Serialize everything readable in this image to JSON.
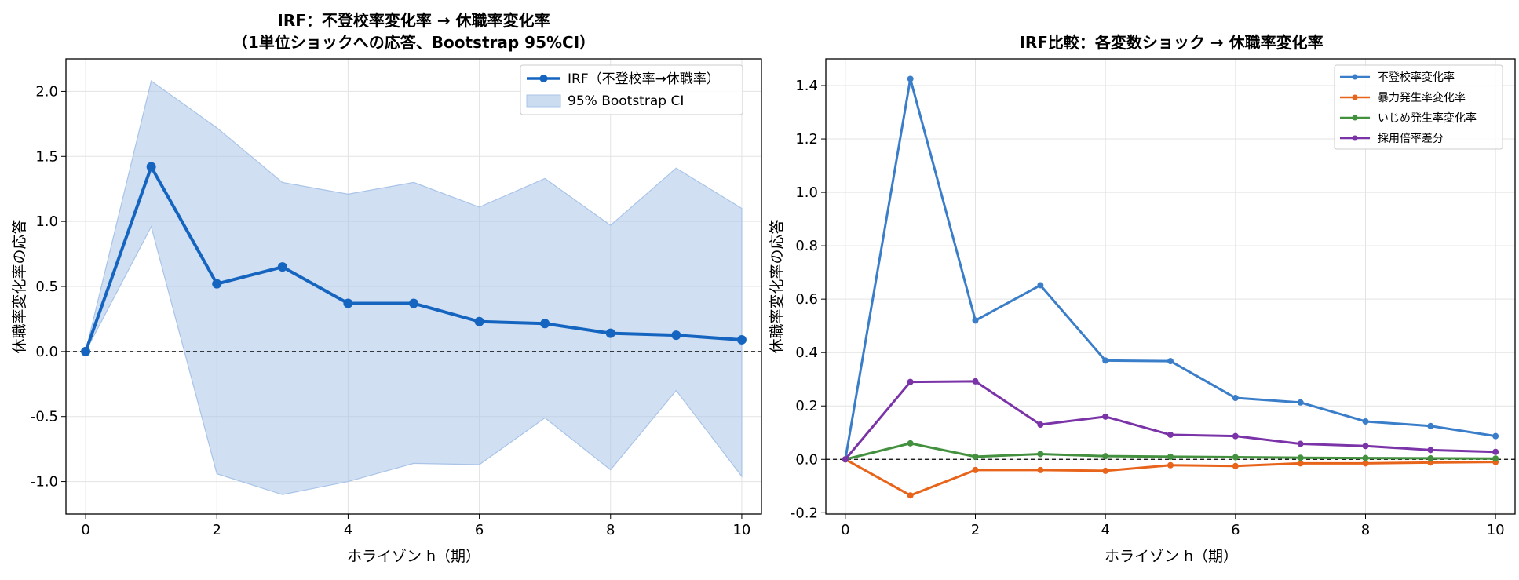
{
  "figure": {
    "panels": [
      {
        "title_lines": [
          "IRF：不登校率変化率 → 休職率変化率",
          "（1単位ショックへの応答、Bootstrap 95%CI）"
        ],
        "xlabel": "ホライゾン h（期）",
        "ylabel": "休職率変化率の応答",
        "xticks": [
          "0",
          "2",
          "4",
          "6",
          "8",
          "10"
        ],
        "yticks": [
          "-1.0",
          "-0.5",
          "0.0",
          "0.5",
          "1.0",
          "1.5",
          "2.0"
        ],
        "legend": [
          "IRF（不登校率→休職率）",
          "95% Bootstrap CI"
        ]
      },
      {
        "title_lines": [
          "IRF比較：各変数ショック → 休職率変化率"
        ],
        "xlabel": "ホライゾン h（期）",
        "ylabel": "休職率変化率の応答",
        "xticks": [
          "0",
          "2",
          "4",
          "6",
          "8",
          "10"
        ],
        "yticks": [
          "-0.2",
          "0.0",
          "0.2",
          "0.4",
          "0.6",
          "0.8",
          "1.0",
          "1.2",
          "1.4"
        ],
        "legend": [
          "不登校率変化率",
          "暴力発生率変化率",
          "いじめ発生率変化率",
          "採用倍率差分"
        ]
      }
    ]
  },
  "chart_data": [
    {
      "type": "line",
      "title": "IRF：不登校率変化率 → 休職率変化率（1単位ショックへの応答、Bootstrap 95%CI）",
      "xlabel": "ホライゾン h（期）",
      "ylabel": "休職率変化率の応答",
      "x": [
        0,
        1,
        2,
        3,
        4,
        5,
        6,
        7,
        8,
        9,
        10
      ],
      "series": [
        {
          "name": "IRF（不登校率→休職率）",
          "color": "#1565c0",
          "values": [
            0.0,
            1.42,
            0.52,
            0.65,
            0.37,
            0.37,
            0.23,
            0.215,
            0.14,
            0.125,
            0.09
          ]
        }
      ],
      "band": {
        "name": "95% Bootstrap CI",
        "color": "#a9c4e8",
        "lower": [
          0.0,
          0.96,
          -0.94,
          -1.1,
          -1.0,
          -0.86,
          -0.87,
          -0.51,
          -0.91,
          -0.3,
          -0.96
        ],
        "upper": [
          0.0,
          2.08,
          1.72,
          1.3,
          1.21,
          1.3,
          1.11,
          1.33,
          0.97,
          1.41,
          1.1
        ]
      },
      "reference_line": 0.0,
      "xlim": [
        -0.3,
        10.3
      ],
      "ylim": [
        -1.25,
        2.25
      ],
      "grid": true,
      "legend_position": "top-right"
    },
    {
      "type": "line",
      "title": "IRF比較：各変数ショック → 休職率変化率",
      "xlabel": "ホライゾン h（期）",
      "ylabel": "休職率変化率の応答",
      "x": [
        0,
        1,
        2,
        3,
        4,
        5,
        6,
        7,
        8,
        9,
        10
      ],
      "series": [
        {
          "name": "不登校率変化率",
          "color": "#3a7dc9",
          "values": [
            0.0,
            1.425,
            0.52,
            0.652,
            0.37,
            0.368,
            0.23,
            0.213,
            0.142,
            0.125,
            0.087
          ]
        },
        {
          "name": "暴力発生率変化率",
          "color": "#e8641b",
          "values": [
            0.0,
            -0.135,
            -0.04,
            -0.04,
            -0.043,
            -0.022,
            -0.025,
            -0.015,
            -0.015,
            -0.012,
            -0.01
          ]
        },
        {
          "name": "いじめ発生率変化率",
          "color": "#43913f",
          "values": [
            0.0,
            0.06,
            0.01,
            0.02,
            0.012,
            0.01,
            0.008,
            0.006,
            0.005,
            0.004,
            0.003
          ]
        },
        {
          "name": "採用倍率差分",
          "color": "#7b33a8",
          "values": [
            0.0,
            0.29,
            0.292,
            0.13,
            0.16,
            0.092,
            0.087,
            0.058,
            0.05,
            0.035,
            0.028
          ]
        }
      ],
      "reference_line": 0.0,
      "xlim": [
        -0.3,
        10.3
      ],
      "ylim": [
        -0.205,
        1.5
      ],
      "grid": true,
      "legend_position": "top-right"
    }
  ]
}
